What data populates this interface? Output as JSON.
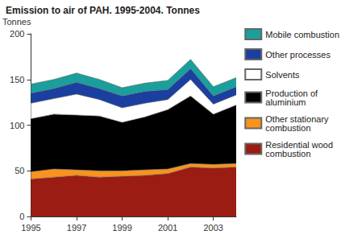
{
  "chart_data": {
    "type": "area",
    "title": "Emission to air of PAH. 1995-2004. Tonnes",
    "y_label": "Tonnes",
    "categories": [
      "1995",
      null,
      "1997",
      null,
      "1999",
      null,
      "2001",
      null,
      "2003",
      null
    ],
    "stacked": true,
    "legend": "right",
    "grid": false,
    "ylim": [
      0,
      200
    ],
    "yticks": [
      0,
      50,
      100,
      150,
      200
    ],
    "series": [
      {
        "name": "Residential wood combustion",
        "color": "#9b1c12",
        "values": [
          41,
          43,
          45,
          43,
          44,
          45,
          47,
          54,
          53,
          54
        ]
      },
      {
        "name": "Other stationary combustion",
        "color": "#f7931e",
        "values": [
          8,
          9,
          6,
          7,
          6,
          6,
          5,
          4,
          4,
          4
        ]
      },
      {
        "name": "Production of aluminium",
        "color": "#000000",
        "values": [
          58,
          60,
          60,
          60,
          53,
          58,
          65,
          74,
          55,
          64
        ]
      },
      {
        "name": "Solvents",
        "color": "#ffffff",
        "values": [
          17,
          17,
          23,
          18,
          16,
          15,
          11,
          18,
          11,
          11
        ]
      },
      {
        "name": "Other processes",
        "color": "#1b3f9f",
        "values": [
          11,
          11,
          13,
          12,
          13,
          13,
          11,
          12,
          9,
          9
        ]
      },
      {
        "name": "Mobile combustion",
        "color": "#1a9f9c",
        "values": [
          10,
          10,
          10,
          10,
          9,
          9,
          10,
          10,
          10,
          10
        ]
      }
    ]
  }
}
